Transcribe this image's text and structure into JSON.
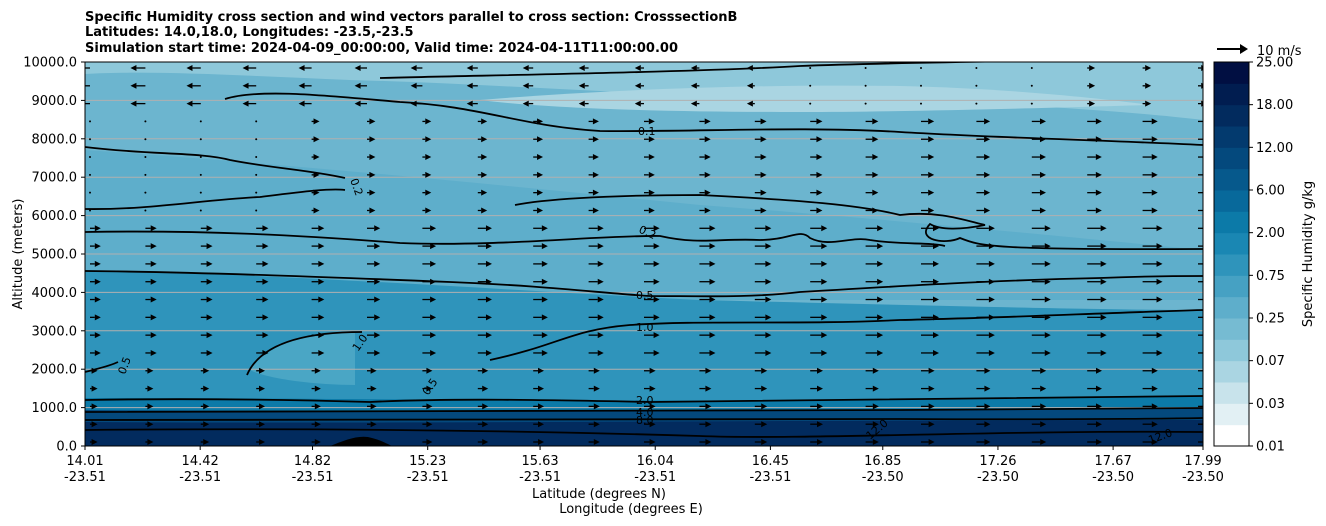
{
  "chart_data": {
    "type": "contourf",
    "title_lines": [
      "Specific Humidity cross section and wind vectors parallel to cross section: CrosssectionB",
      "Latitudes: 14.0,18.0, Longitudes: -23.5,-23.5",
      "Simulation start time: 2024-04-09_00:00:00, Valid time: 2024-04-11T11:00:00.00"
    ],
    "xlabel_lines": [
      "Latitude (degrees N)",
      "Longitude (degrees E)"
    ],
    "ylabel": "Altitude (meters)",
    "ylim": [
      0,
      10000
    ],
    "yticks": [
      "0.0",
      "1000.0",
      "2000.0",
      "3000.0",
      "4000.0",
      "5000.0",
      "6000.0",
      "7000.0",
      "8000.0",
      "9000.0",
      "10000.0"
    ],
    "xlim": [
      14.01,
      17.99
    ],
    "xticks": [
      {
        "lat": "14.01",
        "lon": "-23.51"
      },
      {
        "lat": "14.42",
        "lon": "-23.51"
      },
      {
        "lat": "14.82",
        "lon": "-23.51"
      },
      {
        "lat": "15.23",
        "lon": "-23.51"
      },
      {
        "lat": "15.63",
        "lon": "-23.51"
      },
      {
        "lat": "16.04",
        "lon": "-23.51"
      },
      {
        "lat": "16.45",
        "lon": "-23.51"
      },
      {
        "lat": "16.85",
        "lon": "-23.50"
      },
      {
        "lat": "17.26",
        "lon": "-23.50"
      },
      {
        "lat": "17.67",
        "lon": "-23.50"
      },
      {
        "lat": "17.99",
        "lon": "-23.50"
      }
    ],
    "grid": "horizontal",
    "colorbar": {
      "label": "Specific Humidity g/kg",
      "levels": [
        "0.01",
        "0.03",
        "0.07",
        "0.25",
        "0.75",
        "2.00",
        "6.00",
        "12.00",
        "18.00",
        "25.00"
      ],
      "colors": [
        "#ffffff",
        "#e2f0f4",
        "#c8e3eb",
        "#aad5e2",
        "#8ec8da",
        "#76bbd2",
        "#5eaecb",
        "#46a1c3",
        "#2f94bb",
        "#1a87b3",
        "#0c7aa8",
        "#08699b",
        "#06598c",
        "#04497d",
        "#033a6e",
        "#022b5e",
        "#011d50",
        "#010f42"
      ]
    },
    "contour_labels": [
      "0.1",
      "0.2",
      "0.5",
      "1.0",
      "2.0",
      "4.0",
      "8.0",
      "12.0"
    ],
    "quiver_key": "10 m/s",
    "terrain_color": "#000000"
  }
}
